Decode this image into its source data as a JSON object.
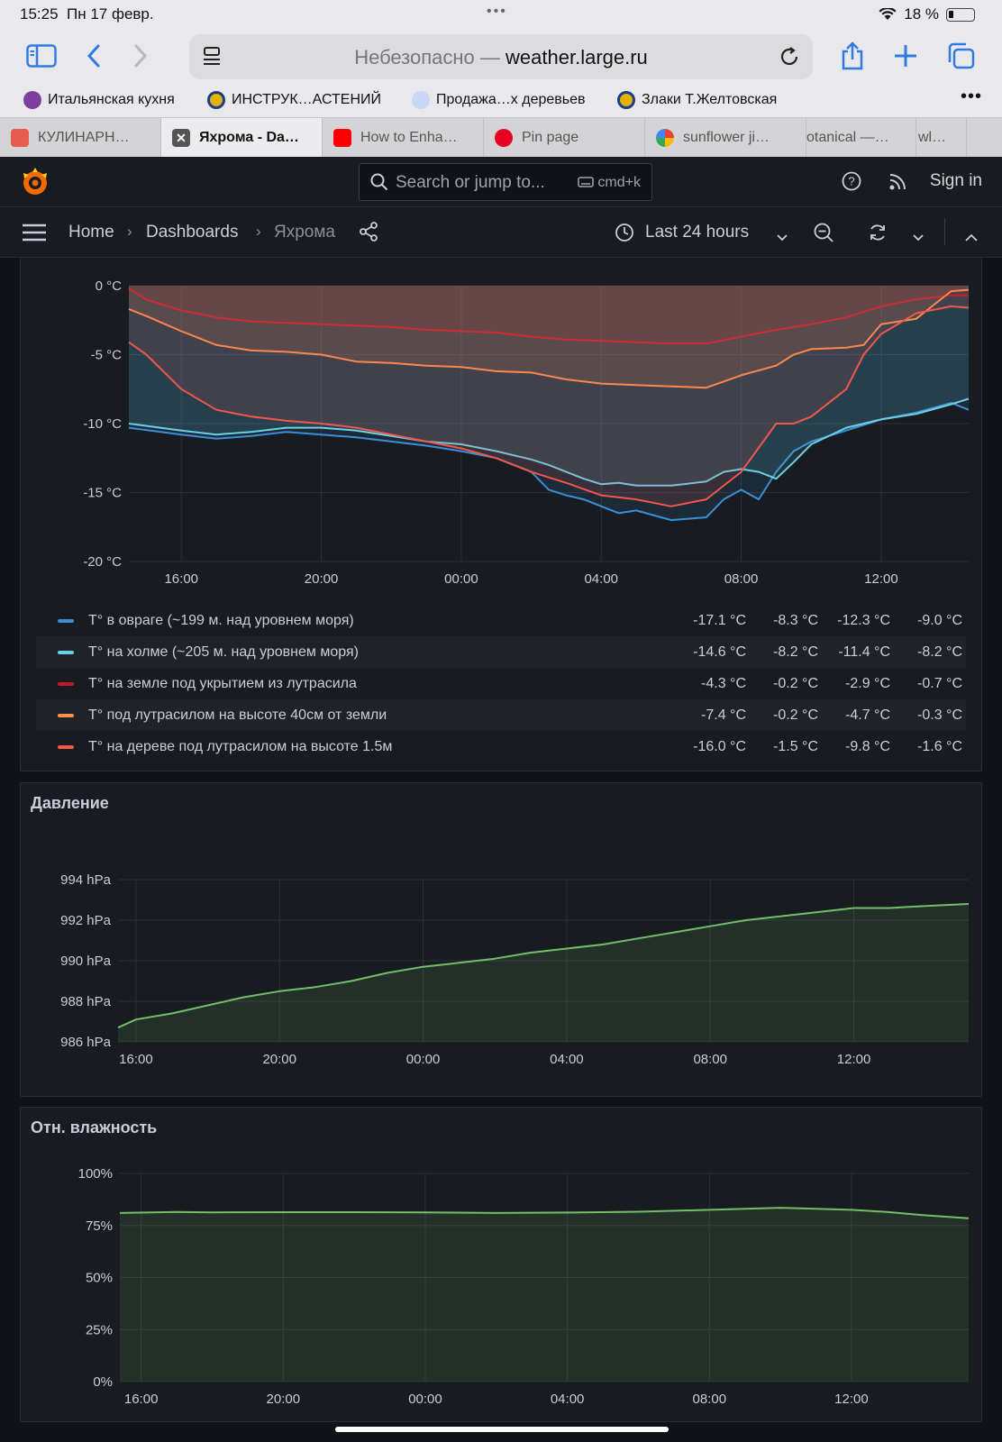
{
  "status_bar": {
    "time": "15:25",
    "date": "Пн 17 февр.",
    "battery": "18 %"
  },
  "browser": {
    "url_insecure_label": "Небезопасно —",
    "url_host": "weather.large.ru",
    "bookmarks": [
      "Итальянская кухня",
      "ИНСТРУК…АСТЕНИЙ",
      "Продажа…х деревьев",
      "Злаки Т.Желтовская"
    ],
    "tabs": [
      "КУЛИНАРН…",
      "Яхрома - Da…",
      "How to Enha…",
      "Pin page",
      "sunflower ji…",
      "otanical —…",
      "wl…"
    ]
  },
  "grafana": {
    "search_placeholder": "Search or jump to...",
    "search_shortcut": "cmd+k",
    "sign_in": "Sign in",
    "breadcrumbs": [
      "Home",
      "Dashboards",
      "Яхрома"
    ],
    "time_range": "Last 24 hours"
  },
  "colors": {
    "blue": "#3b8fd6",
    "light_blue": "#6ed0e6",
    "dark_red": "#c4162a",
    "orange": "#ff8f4c",
    "red": "#f2574a",
    "green": "#73bf69"
  },
  "legend": {
    "rows": [
      {
        "label": "T° в овраге (~199 м. над уровнем моря)",
        "min": "-17.1 °C",
        "max": "-8.3 °C",
        "avg": "-12.3 °C",
        "cur": "-9.0 °C",
        "color": "#3b8fd6"
      },
      {
        "label": "T° на холме (~205 м. над уровнем моря)",
        "min": "-14.6 °C",
        "max": "-8.2 °C",
        "avg": "-11.4 °C",
        "cur": "-8.2 °C",
        "color": "#6ed0e6"
      },
      {
        "label": "T° на земле под укрытием из лутрасила",
        "min": "-4.3 °C",
        "max": "-0.2 °C",
        "avg": "-2.9 °C",
        "cur": "-0.7 °C",
        "color": "#c4162a"
      },
      {
        "label": "T° под лутрасилом на высоте 40см от земли",
        "min": "-7.4 °C",
        "max": "-0.2 °C",
        "avg": "-4.7 °C",
        "cur": "-0.3 °C",
        "color": "#ff8f4c"
      },
      {
        "label": "T° на дереве под лутрасилом на высоте 1.5м",
        "min": "-16.0 °C",
        "max": "-1.5 °C",
        "avg": "-9.8 °C",
        "cur": "-1.6 °C",
        "color": "#f2574a"
      }
    ]
  },
  "panels": {
    "pressure_title": "Давление",
    "humidity_title": "Отн. влажность"
  },
  "chart_data": [
    {
      "type": "line",
      "title": "",
      "x_ticks": [
        "16:00",
        "20:00",
        "00:00",
        "04:00",
        "08:00",
        "12:00"
      ],
      "y_ticks": [
        "0 °C",
        "-5 °C",
        "-10 °C",
        "-15 °C",
        "-20 °C"
      ],
      "ylim": [
        -20,
        0
      ],
      "xlim_hours": [
        14.5,
        38.5
      ],
      "series": [
        {
          "name": "T° в овраге (~199 м. над уровнем моря)",
          "color": "#3b8fd6",
          "x": [
            14.5,
            16,
            17,
            18,
            19,
            20,
            21,
            22,
            23,
            24,
            25,
            26,
            26.5,
            27,
            27.5,
            28,
            28.5,
            29,
            30,
            31,
            31.5,
            32,
            32.5,
            33,
            33.5,
            34,
            35,
            36,
            37,
            38,
            38.5
          ],
          "y": [
            -10.3,
            -10.8,
            -11.1,
            -10.9,
            -10.6,
            -10.8,
            -11.0,
            -11.3,
            -11.6,
            -12.0,
            -12.5,
            -13.5,
            -14.8,
            -15.2,
            -15.5,
            -16.0,
            -16.5,
            -16.3,
            -17.0,
            -16.8,
            -15.5,
            -14.8,
            -15.5,
            -13.5,
            -12.0,
            -11.3,
            -10.5,
            -9.7,
            -9.2,
            -8.5,
            -9.0
          ]
        },
        {
          "name": "T° на холме (~205 м. над уровнем моря)",
          "color": "#6ed0e6",
          "x": [
            14.5,
            16,
            17,
            18,
            19,
            20,
            21,
            22,
            23,
            24,
            25,
            26,
            26.5,
            27,
            27.5,
            28,
            28.5,
            29,
            30,
            31,
            31.5,
            32,
            32.5,
            33,
            33.5,
            34,
            35,
            36,
            37,
            38,
            38.5
          ],
          "y": [
            -10.0,
            -10.5,
            -10.8,
            -10.6,
            -10.3,
            -10.3,
            -10.5,
            -10.9,
            -11.3,
            -11.5,
            -12.0,
            -12.6,
            -13.0,
            -13.5,
            -14.0,
            -14.4,
            -14.3,
            -14.5,
            -14.5,
            -14.2,
            -13.5,
            -13.3,
            -13.5,
            -14.0,
            -12.8,
            -11.5,
            -10.3,
            -9.7,
            -9.3,
            -8.6,
            -8.2
          ]
        },
        {
          "name": "T° на земле под укрытием из лутрасила",
          "color": "#c4162a",
          "x": [
            14.5,
            15,
            16,
            17,
            18,
            19,
            20,
            21,
            22,
            23,
            24,
            25,
            26,
            27,
            28,
            29,
            30,
            31,
            32,
            33,
            34,
            35,
            36,
            37,
            38,
            38.5
          ],
          "y": [
            -0.2,
            -1.0,
            -1.8,
            -2.3,
            -2.6,
            -2.7,
            -2.8,
            -2.9,
            -3.0,
            -3.2,
            -3.3,
            -3.4,
            -3.7,
            -3.9,
            -4.0,
            -4.1,
            -4.2,
            -4.2,
            -3.7,
            -3.2,
            -2.8,
            -2.3,
            -1.5,
            -1.0,
            -0.7,
            -0.7
          ]
        },
        {
          "name": "T° под лутрасилом на высоте 40см от земли",
          "color": "#ff8f4c",
          "x": [
            14.5,
            15,
            16,
            17,
            18,
            19,
            20,
            21,
            22,
            23,
            24,
            25,
            26,
            27,
            28,
            29,
            30,
            31,
            32,
            33,
            33.5,
            34,
            35,
            35.5,
            36,
            37,
            38,
            38.5
          ],
          "y": [
            -1.7,
            -2.2,
            -3.3,
            -4.3,
            -4.7,
            -4.8,
            -5.0,
            -5.5,
            -5.6,
            -5.8,
            -5.9,
            -6.2,
            -6.3,
            -6.8,
            -7.1,
            -7.2,
            -7.3,
            -7.4,
            -6.5,
            -5.8,
            -5.0,
            -4.6,
            -4.5,
            -4.3,
            -2.8,
            -2.4,
            -0.4,
            -0.3
          ]
        },
        {
          "name": "T° на дереве под лутрасилом на высоте 1.5м",
          "color": "#f2574a",
          "x": [
            14.5,
            15,
            16,
            17,
            18,
            19,
            20,
            21,
            22,
            23,
            24,
            25,
            26,
            27,
            28,
            29,
            30,
            31,
            32,
            33,
            33.5,
            34,
            35,
            35.5,
            36,
            37,
            38,
            38.5
          ],
          "y": [
            -4.1,
            -5.0,
            -7.5,
            -9.0,
            -9.5,
            -9.8,
            -10.0,
            -10.3,
            -10.8,
            -11.3,
            -11.8,
            -12.5,
            -13.5,
            -14.3,
            -15.2,
            -15.5,
            -16.0,
            -15.5,
            -13.5,
            -10.0,
            -10.0,
            -9.5,
            -7.5,
            -5.0,
            -3.5,
            -2.0,
            -1.5,
            -1.6
          ]
        }
      ]
    },
    {
      "type": "area",
      "title": "Давление",
      "x_ticks": [
        "16:00",
        "20:00",
        "00:00",
        "04:00",
        "08:00",
        "12:00"
      ],
      "y_ticks": [
        "994 hPa",
        "992 hPa",
        "990 hPa",
        "988 hPa",
        "986 hPa"
      ],
      "ylim": [
        986,
        994
      ],
      "xlim_hours": [
        15.5,
        39.2
      ],
      "series": [
        {
          "name": "",
          "color": "#73bf69",
          "x": [
            15.5,
            16,
            17,
            18,
            19,
            20,
            21,
            22,
            23,
            24,
            25,
            26,
            27,
            28,
            29,
            30,
            31,
            32,
            33,
            34,
            35,
            36,
            37,
            38,
            39.2
          ],
          "y": [
            986.7,
            987.1,
            987.4,
            987.8,
            988.2,
            988.5,
            988.7,
            989.0,
            989.4,
            989.7,
            989.9,
            990.1,
            990.4,
            990.6,
            990.8,
            991.1,
            991.4,
            991.7,
            992.0,
            992.2,
            992.4,
            992.6,
            992.6,
            992.7,
            992.8
          ]
        }
      ]
    },
    {
      "type": "area",
      "title": "Отн. влажность",
      "x_ticks": [
        "16:00",
        "20:00",
        "00:00",
        "04:00",
        "08:00",
        "12:00"
      ],
      "y_ticks": [
        "100%",
        "75%",
        "50%",
        "25%",
        "0%"
      ],
      "ylim": [
        0,
        100
      ],
      "xlim_hours": [
        15.4,
        39.3
      ],
      "series": [
        {
          "name": "",
          "color": "#73bf69",
          "x": [
            15.4,
            17,
            18,
            20,
            22,
            24,
            26,
            28,
            30,
            32,
            34,
            36,
            37,
            38,
            39.3
          ],
          "y": [
            81,
            81.5,
            81.3,
            81.4,
            81.4,
            81.3,
            81.0,
            81.2,
            81.6,
            82.5,
            83.5,
            82.5,
            81.5,
            80.0,
            78.5
          ]
        }
      ]
    }
  ]
}
